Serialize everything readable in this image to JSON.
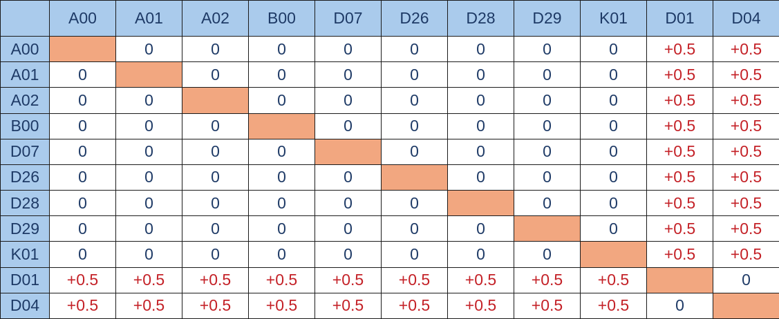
{
  "chart_data": {
    "type": "table",
    "corner_label": "",
    "row_labels": [
      "A00",
      "A01",
      "A02",
      "B00",
      "D07",
      "D26",
      "D28",
      "D29",
      "K01",
      "D01",
      "D04"
    ],
    "column_labels": [
      "A00",
      "A01",
      "A02",
      "B00",
      "D07",
      "D26",
      "D28",
      "D29",
      "K01",
      "D01",
      "D04"
    ],
    "values": [
      [
        "",
        "0",
        "0",
        "0",
        "0",
        "0",
        "0",
        "0",
        "0",
        "+0.5",
        "+0.5"
      ],
      [
        "0",
        "",
        "0",
        "0",
        "0",
        "0",
        "0",
        "0",
        "0",
        "+0.5",
        "+0.5"
      ],
      [
        "0",
        "0",
        "",
        "0",
        "0",
        "0",
        "0",
        "0",
        "0",
        "+0.5",
        "+0.5"
      ],
      [
        "0",
        "0",
        "0",
        "",
        "0",
        "0",
        "0",
        "0",
        "0",
        "+0.5",
        "+0.5"
      ],
      [
        "0",
        "0",
        "0",
        "0",
        "",
        "0",
        "0",
        "0",
        "0",
        "+0.5",
        "+0.5"
      ],
      [
        "0",
        "0",
        "0",
        "0",
        "0",
        "",
        "0",
        "0",
        "0",
        "+0.5",
        "+0.5"
      ],
      [
        "0",
        "0",
        "0",
        "0",
        "0",
        "0",
        "",
        "0",
        "0",
        "+0.5",
        "+0.5"
      ],
      [
        "0",
        "0",
        "0",
        "0",
        "0",
        "0",
        "0",
        "",
        "0",
        "+0.5",
        "+0.5"
      ],
      [
        "0",
        "0",
        "0",
        "0",
        "0",
        "0",
        "0",
        "0",
        "",
        "+0.5",
        "+0.5"
      ],
      [
        "+0.5",
        "+0.5",
        "+0.5",
        "+0.5",
        "+0.5",
        "+0.5",
        "+0.5",
        "+0.5",
        "+0.5",
        "",
        "0"
      ],
      [
        "+0.5",
        "+0.5",
        "+0.5",
        "+0.5",
        "+0.5",
        "+0.5",
        "+0.5",
        "+0.5",
        "+0.5",
        "0",
        ""
      ]
    ],
    "diagonal_cells_highlighted": true,
    "layout_hints": {
      "header_row": true,
      "header_column": true,
      "grid": true
    }
  },
  "colors": {
    "header_bg": "#aacbec",
    "diagonal_bg": "#f2a780",
    "label_text": "#1e3a66",
    "zero_text": "#1e3a66",
    "plus_text": "#c42127",
    "cell_bg": "#ffffff",
    "grid_line": "#1a1a1a"
  }
}
